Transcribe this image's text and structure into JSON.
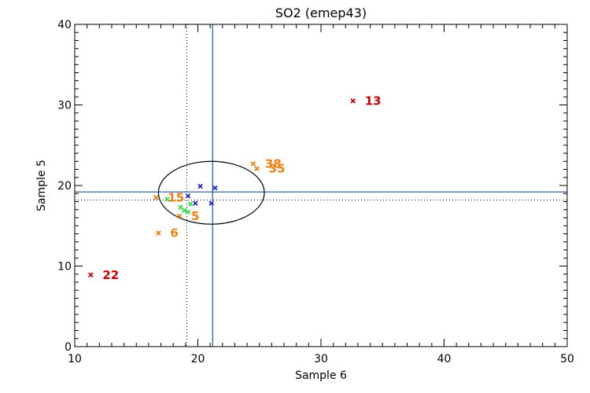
{
  "chart_data": {
    "type": "scatter",
    "title": "SO2 (emep43)",
    "xlabel": "Sample 6",
    "ylabel": "Sample 5",
    "xlim": [
      10,
      50
    ],
    "ylim": [
      0,
      40
    ],
    "x_ticks": [
      10,
      20,
      30,
      40,
      50
    ],
    "y_ticks": [
      0,
      10,
      20,
      30,
      40
    ],
    "x_tick_labels": [
      "10",
      "20",
      "30",
      "40",
      "50"
    ],
    "y_tick_labels": [
      "0",
      "10",
      "20",
      "30",
      "40"
    ],
    "grid": false,
    "mean_lines": {
      "x": 21.2,
      "y": 19.2,
      "color": "#2050a0"
    },
    "median_lines": {
      "x": 19.1,
      "y": 18.2,
      "color": "#000000"
    },
    "ellipse": {
      "cx": 21.1,
      "cy": 19.1,
      "rx": 4.3,
      "ry": 3.9,
      "color": "#000000"
    },
    "series": [
      {
        "name": "red",
        "color": "#cc0000",
        "points": [
          {
            "x": 32.6,
            "y": 30.5,
            "label": "13"
          },
          {
            "x": 11.3,
            "y": 8.9,
            "label": "22"
          }
        ]
      },
      {
        "name": "orange",
        "color": "#f07f10",
        "points": [
          {
            "x": 24.5,
            "y": 22.7,
            "label": "38"
          },
          {
            "x": 24.8,
            "y": 22.1,
            "label": "35"
          },
          {
            "x": 16.6,
            "y": 18.5,
            "label": "15"
          },
          {
            "x": 18.5,
            "y": 16.2,
            "label": "5"
          },
          {
            "x": 16.8,
            "y": 14.1,
            "label": "6"
          }
        ]
      },
      {
        "name": "green",
        "color": "#33dd44",
        "points": [
          {
            "x": 17.5,
            "y": 18.3,
            "label": ""
          },
          {
            "x": 18.6,
            "y": 17.3,
            "label": ""
          },
          {
            "x": 19.4,
            "y": 17.7,
            "label": ""
          },
          {
            "x": 18.9,
            "y": 16.9,
            "label": ""
          },
          {
            "x": 19.2,
            "y": 16.7,
            "label": ""
          }
        ]
      },
      {
        "name": "blue",
        "color": "#2222cc",
        "points": [
          {
            "x": 20.2,
            "y": 19.9,
            "label": ""
          },
          {
            "x": 21.4,
            "y": 19.7,
            "label": ""
          },
          {
            "x": 19.2,
            "y": 18.7,
            "label": ""
          },
          {
            "x": 19.8,
            "y": 17.8,
            "label": ""
          },
          {
            "x": 21.1,
            "y": 17.8,
            "label": ""
          }
        ]
      }
    ]
  }
}
